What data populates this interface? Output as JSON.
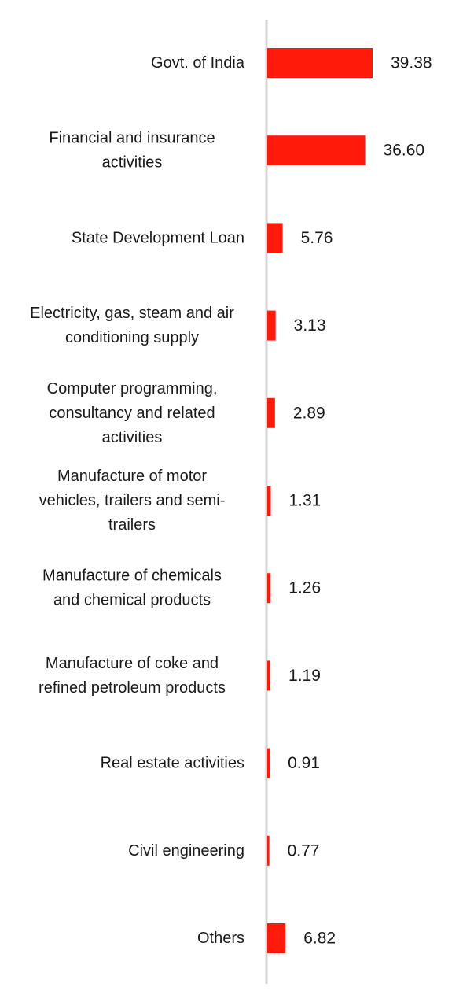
{
  "chart_data": {
    "type": "bar",
    "orientation": "horizontal",
    "color": "#ff1a0a",
    "axis_color": "#d4d4d4",
    "grid": false,
    "categories": [
      "Govt. of India",
      "Financial and insurance activities",
      "State Development Loan",
      "Electricity, gas, steam and air conditioning supply",
      "Computer programming, consultancy and related activities",
      "Manufacture of motor vehicles, trailers and semi-trailers",
      "Manufacture of chemicals and chemical products",
      "Manufacture of coke and refined petroleum products",
      "Real estate activities",
      "Civil engineering",
      "Others"
    ],
    "category_lines": [
      [
        "Govt. of India"
      ],
      [
        "Financial and insurance",
        "activities"
      ],
      [
        "State Development Loan"
      ],
      [
        "Electricity, gas, steam and air",
        "conditioning supply"
      ],
      [
        "Computer programming,",
        "consultancy and related",
        "activities"
      ],
      [
        "Manufacture of motor",
        "vehicles, trailers and semi-",
        "trailers"
      ],
      [
        "Manufacture of chemicals",
        "and chemical products"
      ],
      [
        "Manufacture of coke and",
        "refined petroleum products"
      ],
      [
        "Real estate activities"
      ],
      [
        "Civil engineering"
      ],
      [
        "Others"
      ]
    ],
    "values": [
      39.38,
      36.6,
      5.76,
      3.13,
      2.89,
      1.31,
      1.26,
      1.19,
      0.91,
      0.77,
      6.82
    ],
    "value_labels": [
      "39.38",
      "36.60",
      "5.76",
      "3.13",
      "2.89",
      "1.31",
      "1.26",
      "1.19",
      "0.91",
      "0.77",
      "6.82"
    ],
    "xlim": [
      0,
      39.38
    ]
  }
}
